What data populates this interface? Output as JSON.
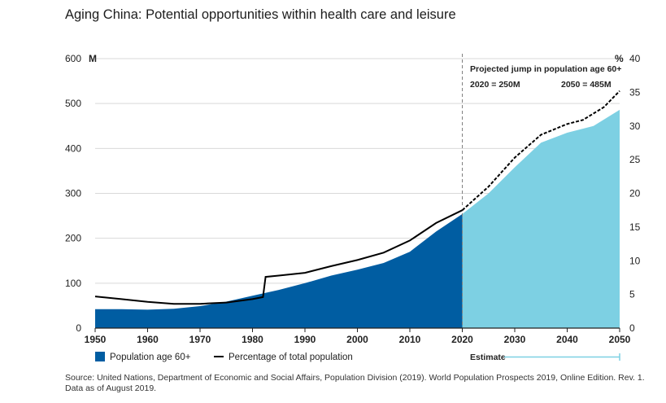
{
  "title": "Aging China: Potential opportunities within health care and leisure",
  "source": "Source: United Nations, Department of Economic and Social Affairs, Population Division (2019). World Population Prospects 2019, Online Edition. Rev. 1. Data as of August 2019.",
  "colors": {
    "historical": "#005DA2",
    "estimate": "#7DD0E3",
    "line": "#000000",
    "grid": "#D9D9D9",
    "divider": "#808080"
  },
  "chart_data": {
    "type": "area",
    "y_left": {
      "unit": "M",
      "min": 0,
      "max": 600,
      "ticks": [
        "0",
        "100",
        "200",
        "300",
        "400",
        "500",
        "600"
      ]
    },
    "y_right": {
      "unit": "%",
      "min": 0,
      "max": 40,
      "ticks": [
        "0",
        "5",
        "10",
        "15",
        "20",
        "25",
        "30",
        "35",
        "40"
      ]
    },
    "x": {
      "min": 1950,
      "max": 2050,
      "ticks": [
        "1950",
        "1960",
        "1970",
        "1980",
        "1990",
        "2000",
        "2010",
        "2020",
        "2030",
        "2040",
        "2050"
      ]
    },
    "divider_year": 2020,
    "series": [
      {
        "name": "Population age 60+",
        "axis": "left",
        "points": [
          [
            1950,
            42
          ],
          [
            1955,
            42
          ],
          [
            1960,
            41
          ],
          [
            1965,
            43
          ],
          [
            1970,
            49
          ],
          [
            1975,
            59
          ],
          [
            1980,
            72
          ],
          [
            1985,
            85
          ],
          [
            1990,
            100
          ],
          [
            1995,
            117
          ],
          [
            2000,
            130
          ],
          [
            2005,
            145
          ],
          [
            2010,
            170
          ],
          [
            2015,
            215
          ],
          [
            2020,
            254
          ],
          [
            2025,
            300
          ],
          [
            2030,
            358
          ],
          [
            2035,
            413
          ],
          [
            2040,
            435
          ],
          [
            2045,
            450
          ],
          [
            2050,
            486
          ]
        ]
      },
      {
        "name": "Percentage of total population",
        "axis": "right",
        "points": [
          [
            1950,
            4.7
          ],
          [
            1955,
            4.3
          ],
          [
            1960,
            3.9
          ],
          [
            1965,
            3.6
          ],
          [
            1970,
            3.6
          ],
          [
            1975,
            3.8
          ],
          [
            1980,
            4.3
          ],
          [
            1982,
            4.6
          ],
          [
            1982.5,
            7.6
          ],
          [
            1985,
            7.8
          ],
          [
            1990,
            8.2
          ],
          [
            1995,
            9.2
          ],
          [
            2000,
            10.1
          ],
          [
            2005,
            11.2
          ],
          [
            2010,
            13.0
          ],
          [
            2015,
            15.6
          ],
          [
            2020,
            17.5
          ],
          [
            2025,
            21.0
          ],
          [
            2030,
            25.3
          ],
          [
            2035,
            28.7
          ],
          [
            2040,
            30.3
          ],
          [
            2043,
            30.9
          ],
          [
            2047,
            32.8
          ],
          [
            2050,
            35.2
          ]
        ]
      }
    ],
    "annotation": {
      "heading": "Projected jump in population age 60+",
      "left": "2020 = 250M",
      "right": "2050 = 485M"
    },
    "legend": {
      "area_label": "Population age 60+",
      "line_label": "Percentage of total population",
      "estimate_label": "Estimate"
    }
  }
}
